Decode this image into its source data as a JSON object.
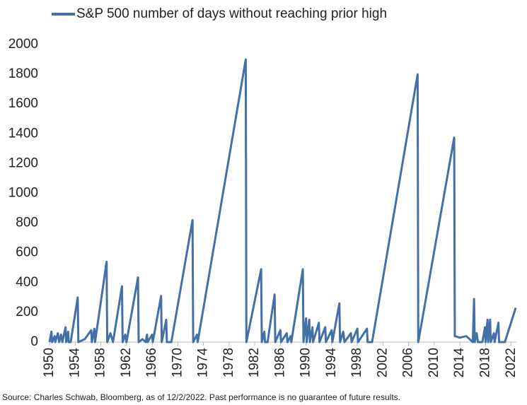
{
  "chart_data": {
    "type": "line",
    "x": [
      1950,
      1950.3,
      1950.4,
      1950.8,
      1950.9,
      1951.3,
      1951.5,
      1951.8,
      1952,
      1952.5,
      1952.6,
      1952.9,
      1953,
      1953.3,
      1954.4,
      1954.5,
      1955.5,
      1956.5,
      1956.6,
      1957,
      1957.1,
      1958.9,
      1959,
      1959.5,
      1959.9,
      1961.3,
      1961.4,
      1961.8,
      1962,
      1963.8,
      1963.9,
      1964.5,
      1965,
      1965.2,
      1965.3,
      1966,
      1966.1,
      1967.4,
      1967.5,
      1968.2,
      1968.3,
      1969,
      1972.3,
      1972.4,
      1973,
      1973.1,
      1980.6,
      1980.7,
      1983,
      1983.1,
      1983.5,
      1983.6,
      1984,
      1985.1,
      1985.2,
      1986,
      1986.1,
      1987,
      1987.1,
      1987.6,
      1987.7,
      1989.5,
      1989.6,
      1990,
      1990.1,
      1990.5,
      1990.6,
      1991,
      1991.1,
      1992,
      1992.1,
      1993,
      1993.1,
      1994,
      1994.1,
      1995.2,
      1995.3,
      1995.8,
      1996,
      1997,
      1997.1,
      1998,
      1998.1,
      1999.5,
      1999.6,
      2000.3,
      2007.4,
      2007.5,
      2013.1,
      2013.2,
      2014,
      2015,
      2016,
      2016.2,
      2016.3,
      2016.6,
      2016.8,
      2017.5,
      2017.9,
      2018,
      2018.3,
      2018.4,
      2018.7,
      2018.8,
      2019.3,
      2019.4,
      2020,
      2020.1,
      2021,
      2022.7
    ],
    "series": [
      {
        "name": "S&P 500 number of days without reaching prior high",
        "color": "#4470a8",
        "values": [
          0,
          70,
          0,
          40,
          0,
          60,
          0,
          50,
          0,
          100,
          0,
          70,
          0,
          0,
          300,
          0,
          20,
          80,
          0,
          90,
          0,
          540,
          0,
          60,
          0,
          375,
          0,
          50,
          0,
          435,
          0,
          20,
          0,
          50,
          0,
          50,
          0,
          310,
          0,
          150,
          0,
          0,
          820,
          0,
          50,
          0,
          1900,
          0,
          490,
          0,
          70,
          0,
          0,
          320,
          0,
          80,
          0,
          60,
          0,
          40,
          0,
          490,
          0,
          160,
          0,
          150,
          0,
          100,
          0,
          130,
          0,
          100,
          0,
          80,
          0,
          260,
          0,
          70,
          0,
          60,
          0,
          90,
          0,
          90,
          0,
          0,
          1800,
          0,
          1375,
          40,
          30,
          40,
          0,
          290,
          0,
          60,
          0,
          0,
          100,
          0,
          150,
          0,
          150,
          0,
          60,
          0,
          130,
          0,
          0,
          230
        ]
      }
    ],
    "xlim": [
      1950,
      2022.8
    ],
    "xticks": [
      1950,
      1954,
      1958,
      1962,
      1966,
      1970,
      1974,
      1978,
      1982,
      1986,
      1990,
      1994,
      1998,
      2002,
      2006,
      2010,
      2014,
      2018,
      2022
    ],
    "ylim": [
      0,
      2000
    ],
    "yticks": [
      0,
      200,
      400,
      600,
      800,
      1000,
      1200,
      1400,
      1600,
      1800,
      2000
    ],
    "legend": "top-left",
    "source": "Source: Charles Schwab, Bloomberg, as of 12/2/2022. Past performance is no guarantee of future results."
  }
}
